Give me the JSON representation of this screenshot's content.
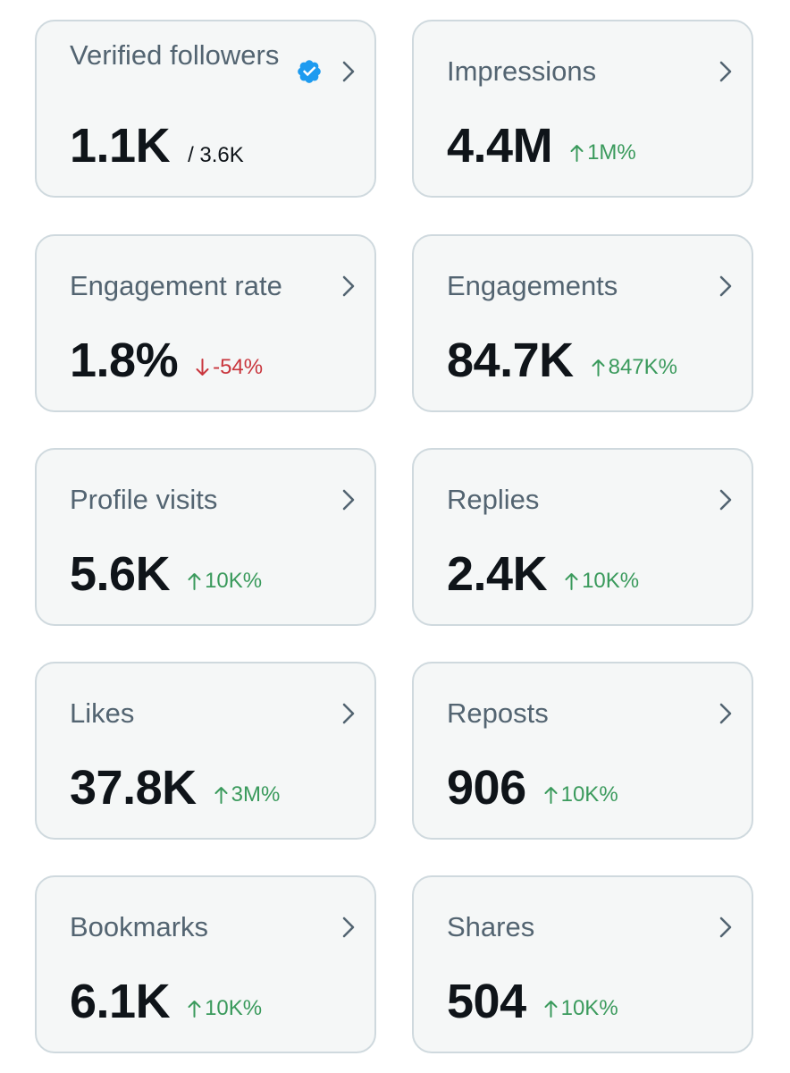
{
  "colors": {
    "card_bg": "#f5f7f7",
    "card_border": "#cfd9de",
    "label": "#536471",
    "value": "#0f1419",
    "positive": "#3a9a5c",
    "negative": "#c9363d",
    "verified_badge": "#1d9bf0"
  },
  "cards": [
    {
      "label": "Verified followers",
      "value": "1.1K",
      "secondary": "/ 3.6K",
      "icon": "verified-badge-icon",
      "chevron": "chevron-right-icon"
    },
    {
      "label": "Impressions",
      "value": "4.4M",
      "delta": "1M%",
      "trend": "up",
      "chevron": "chevron-right-icon"
    },
    {
      "label": "Engagement rate",
      "value": "1.8%",
      "delta": "-54%",
      "trend": "down",
      "chevron": "chevron-right-icon"
    },
    {
      "label": "Engagements",
      "value": "84.7K",
      "delta": "847K%",
      "trend": "up",
      "chevron": "chevron-right-icon"
    },
    {
      "label": "Profile visits",
      "value": "5.6K",
      "delta": "10K%",
      "trend": "up",
      "chevron": "chevron-right-icon"
    },
    {
      "label": "Replies",
      "value": "2.4K",
      "delta": "10K%",
      "trend": "up",
      "chevron": "chevron-right-icon"
    },
    {
      "label": "Likes",
      "value": "37.8K",
      "delta": "3M%",
      "trend": "up",
      "chevron": "chevron-right-icon"
    },
    {
      "label": "Reposts",
      "value": "906",
      "delta": "10K%",
      "trend": "up",
      "chevron": "chevron-right-icon"
    },
    {
      "label": "Bookmarks",
      "value": "6.1K",
      "delta": "10K%",
      "trend": "up",
      "chevron": "chevron-right-icon"
    },
    {
      "label": "Shares",
      "value": "504",
      "delta": "10K%",
      "trend": "up",
      "chevron": "chevron-right-icon"
    }
  ]
}
